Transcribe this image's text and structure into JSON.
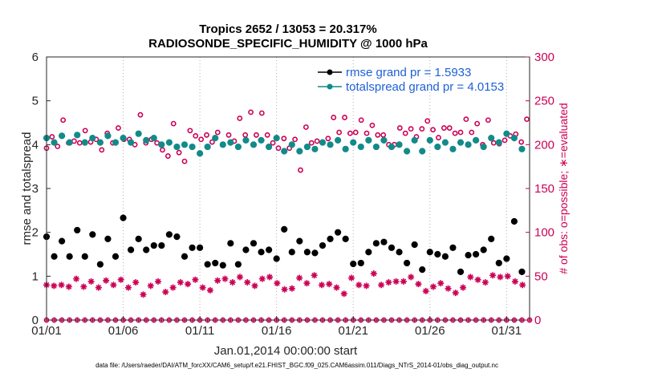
{
  "chart_data": {
    "type": "scatter",
    "title_line1": "Tropics 2652 / 13053 = 20.317%",
    "title_line2": "RADIOSONDE_SPECIFIC_HUMIDITY @ 1000 hPa",
    "xlabel": "Jan.01,2014 00:00:00 start",
    "ylabel_left": "rmse and totalspread",
    "ylabel_right": "# of obs: o=possible; ∗=evaluated",
    "xlim": [
      0,
      31.5
    ],
    "ylim_left": [
      0,
      6
    ],
    "ylim_right": [
      0,
      300
    ],
    "x_ticks": [
      0,
      5,
      10,
      15,
      20,
      25,
      30
    ],
    "x_tick_labels": [
      "01/01",
      "01/06",
      "01/11",
      "01/16",
      "01/21",
      "01/26",
      "01/31"
    ],
    "y_ticks_left": [
      "0",
      "1",
      "2",
      "3",
      "4",
      "5",
      "6"
    ],
    "y_ticks_right": [
      "0",
      "50",
      "100",
      "150",
      "200",
      "250",
      "300"
    ],
    "x_step": 0.5,
    "legend": [
      {
        "label": "rmse grand pr = 1.5933",
        "color": "#000000"
      },
      {
        "label": "totalspread grand pr = 4.0153",
        "color": "#138a8a"
      }
    ],
    "colors": {
      "rmse": "#000000",
      "spread": "#138a8a",
      "obs": "#cc0055"
    },
    "series": [
      {
        "name": "rmse",
        "axis": "left",
        "values": [
          1.9,
          1.45,
          1.8,
          1.45,
          2.05,
          1.45,
          1.95,
          1.27,
          1.85,
          1.45,
          2.33,
          1.6,
          1.85,
          1.6,
          1.7,
          1.7,
          1.95,
          1.9,
          1.45,
          1.65,
          1.65,
          1.27,
          1.3,
          1.25,
          1.75,
          1.27,
          1.6,
          1.75,
          1.55,
          1.6,
          1.4,
          2.07,
          1.55,
          1.8,
          1.55,
          1.53,
          1.7,
          1.85,
          2.0,
          1.85,
          1.28,
          1.3,
          1.55,
          1.75,
          1.78,
          1.65,
          1.55,
          1.3,
          1.72,
          1.15,
          1.55,
          1.5,
          1.45,
          1.65,
          1.1,
          1.48,
          1.5,
          1.6,
          1.85,
          1.3,
          1.4,
          2.25,
          1.1
        ]
      },
      {
        "name": "totalspread",
        "axis": "left",
        "values": [
          4.15,
          4.05,
          4.2,
          4.05,
          4.22,
          4.05,
          4.15,
          4.05,
          4.2,
          4.05,
          4.15,
          4.05,
          4.25,
          4.1,
          4.15,
          4.0,
          4.05,
          3.95,
          4.0,
          3.95,
          3.8,
          3.95,
          4.15,
          4.0,
          4.05,
          3.95,
          4.1,
          4.0,
          4.1,
          3.95,
          4.15,
          3.85,
          4.0,
          3.85,
          3.95,
          3.9,
          4.05,
          4.0,
          4.1,
          3.9,
          4.05,
          3.95,
          4.1,
          3.95,
          4.1,
          3.95,
          4.0,
          3.85,
          4.1,
          3.85,
          4.1,
          3.95,
          4.05,
          3.9,
          4.05,
          4.0,
          4.1,
          3.95,
          4.15,
          4.05,
          4.25,
          4.15,
          3.9
        ]
      },
      {
        "name": "obs_possible",
        "axis": "right",
        "values": [
          196,
          209,
          198,
          228,
          202,
          204,
          202,
          216,
          203,
          206,
          194,
          213,
          202,
          219,
          206,
          206,
          200,
          234,
          202,
          206,
          202,
          194,
          187,
          224,
          191,
          181,
          216,
          210,
          206,
          211,
          203,
          214,
          200,
          211,
          204,
          230,
          211,
          237,
          211,
          236,
          211,
          202,
          196,
          207,
          196,
          206,
          171,
          220,
          202,
          204,
          203,
          207,
          231,
          214,
          231,
          213,
          214,
          228,
          213,
          222,
          211,
          211,
          200,
          200,
          219,
          213,
          218,
          209,
          218,
          227,
          217,
          208,
          219,
          219,
          213,
          214,
          229,
          214,
          224,
          200,
          228,
          202,
          201,
          205,
          210,
          212,
          203,
          229
        ]
      },
      {
        "name": "obs_evaluated",
        "axis": "right",
        "values": [
          40,
          39,
          40,
          38,
          47,
          38,
          44,
          37,
          45,
          40,
          46,
          37,
          43,
          29,
          39,
          44,
          32,
          37,
          43,
          41,
          46,
          37,
          34,
          45,
          47,
          43,
          49,
          43,
          39,
          47,
          49,
          42,
          35,
          36,
          48,
          42,
          51,
          40,
          41,
          37,
          30,
          48,
          40,
          39,
          53,
          40,
          43,
          44,
          44,
          49,
          41,
          33,
          38,
          42,
          36,
          31,
          37,
          49,
          46,
          43,
          51,
          49,
          50,
          44,
          40
        ]
      }
    ],
    "zero_line": {
      "possible_count": 0,
      "evaluated_count": 0
    },
    "footer": "data file: /Users/raeder/DAI/ATM_forcXX/CAM6_setup/f.e21.FHIST_BGC.f09_025.CAM6assim.011/Diags_NTrS_2014-01/obs_diag_output.nc"
  }
}
